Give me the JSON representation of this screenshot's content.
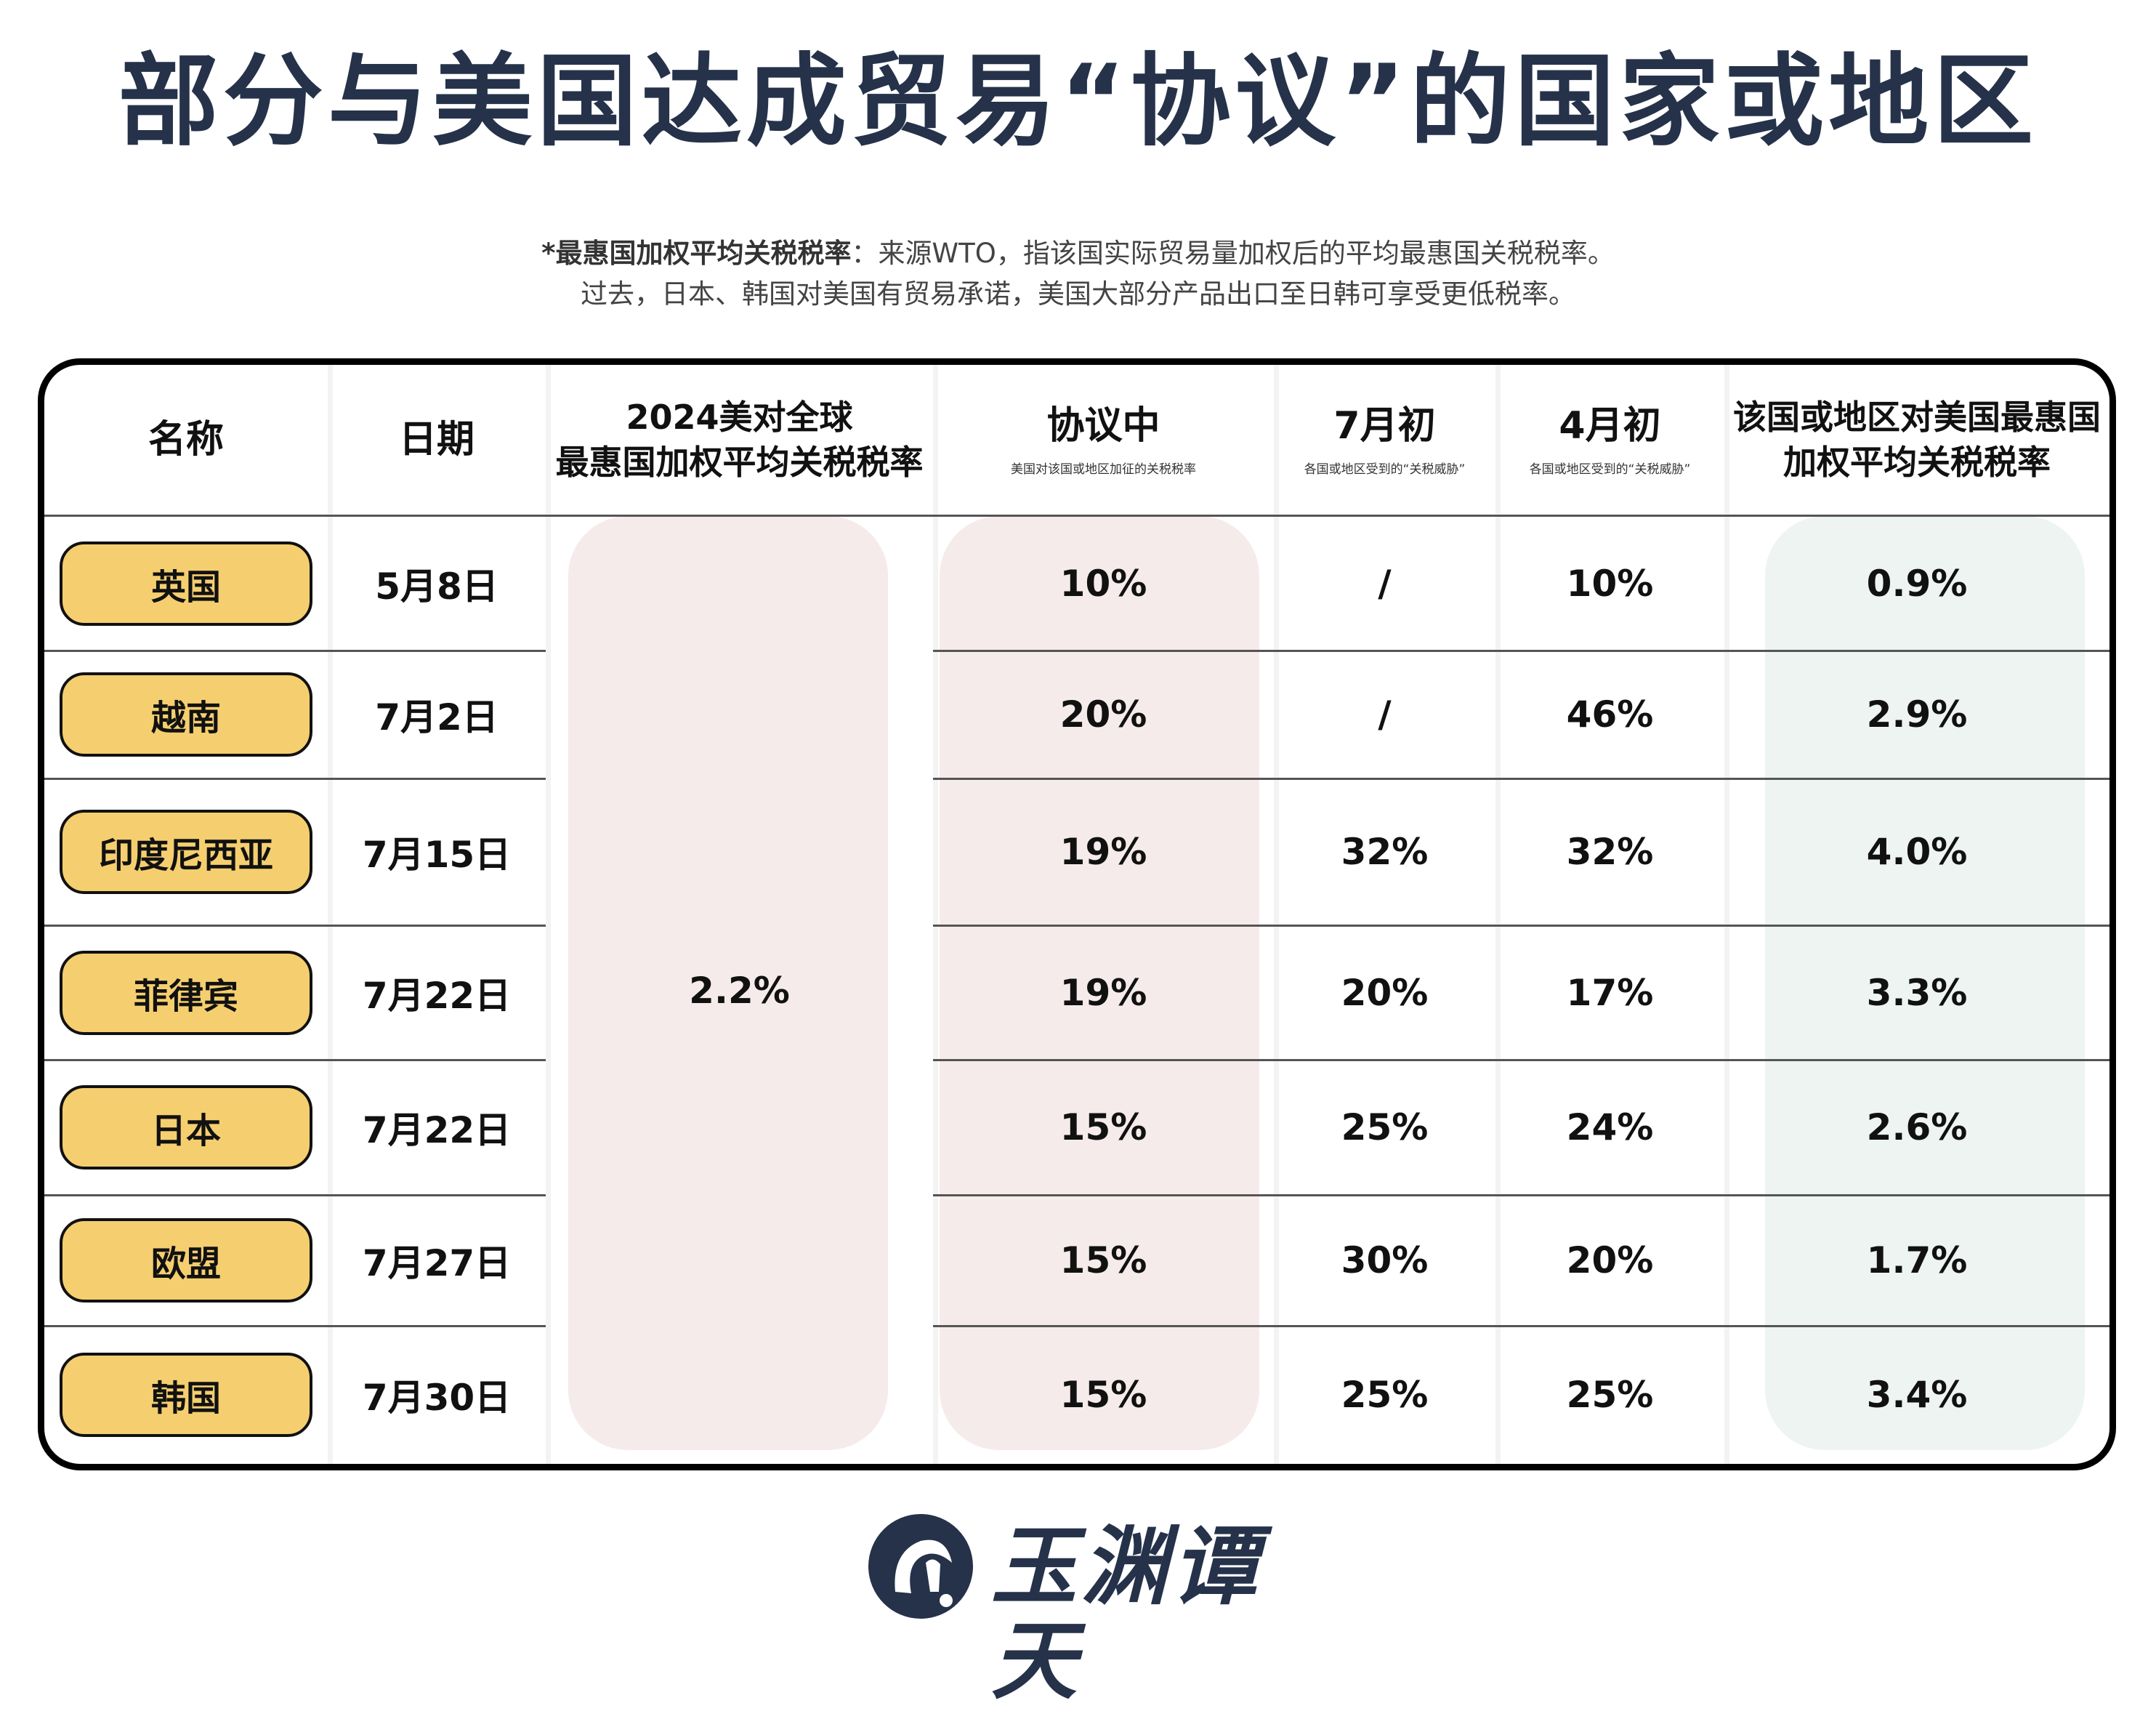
{
  "title": "部分与美国达成贸易“协议”的国家或地区",
  "note": {
    "bold": "*最惠国加权平均关税税率",
    "line1_rest": "：来源WTO，指该国实际贸易量加权后的平均最惠国关税税率。",
    "line2": "过去，日本、韩国对美国有贸易承诺，美国大部分产品出口至日韩可享受更低税率。"
  },
  "headers": {
    "name": "名称",
    "date": "日期",
    "global_l1": "2024美对全球",
    "global_l2": "最惠国加权平均关税税率",
    "deal": "协议中",
    "deal_sub": "美国对该国或地区加征的关税税率",
    "july": "7月初",
    "july_sub": "各国或地区受到的“关税威胁”",
    "april": "4月初",
    "april_sub": "各国或地区受到的“关税威胁”",
    "mfn_l1": "该国或地区对美国最惠国",
    "mfn_l2": "加权平均关税税率"
  },
  "global_rate": "2.2%",
  "rows": [
    {
      "name": "英国",
      "date": "5月8日",
      "deal": "10%",
      "july": "/",
      "april": "10%",
      "mfn": "0.9%"
    },
    {
      "name": "越南",
      "date": "7月2日",
      "deal": "20%",
      "july": "/",
      "april": "46%",
      "mfn": "2.9%"
    },
    {
      "name": "印度尼西亚",
      "date": "7月15日",
      "deal": "19%",
      "july": "32%",
      "april": "32%",
      "mfn": "4.0%"
    },
    {
      "name": "菲律宾",
      "date": "7月22日",
      "deal": "19%",
      "july": "20%",
      "april": "17%",
      "mfn": "3.3%"
    },
    {
      "name": "日本",
      "date": "7月22日",
      "deal": "15%",
      "july": "25%",
      "april": "24%",
      "mfn": "2.6%"
    },
    {
      "name": "欧盟",
      "date": "7月27日",
      "deal": "15%",
      "july": "30%",
      "april": "20%",
      "mfn": "1.7%"
    },
    {
      "name": "韩国",
      "date": "7月30日",
      "deal": "15%",
      "july": "25%",
      "april": "25%",
      "mfn": "3.4%"
    }
  ],
  "logo": {
    "text": "玉渊谭天",
    "icon": "yuyuantantian-logo-icon"
  },
  "colors": {
    "title": "#25324a",
    "pill": "#f5cf6f",
    "pink_band": "#f6ebeb",
    "green_band": "#edf4f2"
  }
}
